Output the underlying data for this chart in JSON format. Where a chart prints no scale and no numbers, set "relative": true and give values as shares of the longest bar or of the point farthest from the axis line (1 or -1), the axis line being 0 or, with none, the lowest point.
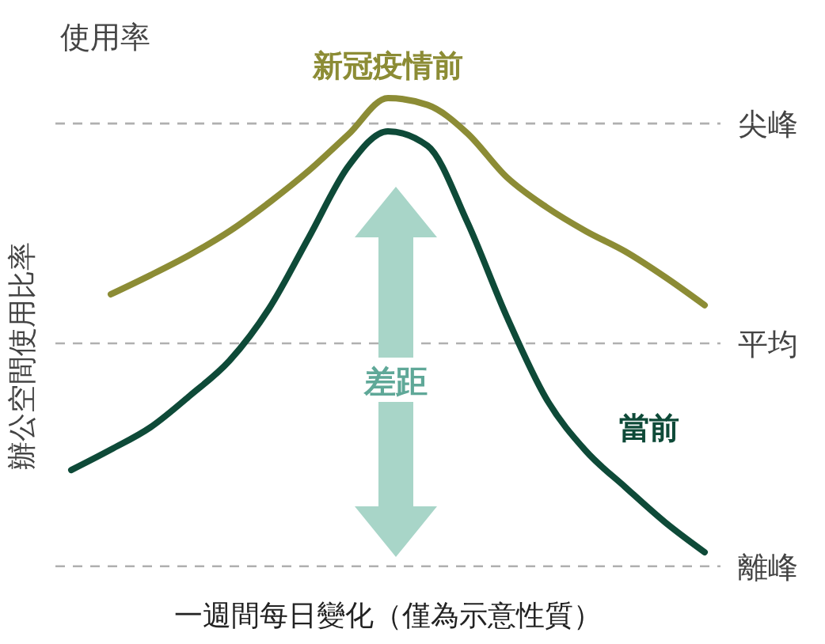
{
  "chart_data": {
    "type": "line",
    "relative": true,
    "xlabel": "一週間每日變化（僅為示意性質）",
    "ylabel": "辦公空間使用比率",
    "annotations": [
      "使用率",
      "差距"
    ],
    "categories": [
      null,
      null,
      null,
      null,
      null,
      null,
      null,
      null,
      null,
      null,
      null,
      null,
      null,
      null,
      null,
      null,
      null
    ],
    "series": [
      {
        "name": "新冠疫情前",
        "color": "#8c8c35",
        "values": [
          null,
          0.568,
          0.61,
          0.655,
          0.707,
          0.77,
          0.84,
          0.92,
          1,
          0.985,
          0.923,
          0.826,
          0.76,
          0.707,
          0.662,
          0.606,
          0.544
        ]
      },
      {
        "name": "當前",
        "color": "#0e4a38",
        "values": [
          0.181,
          0.226,
          0.275,
          0.345,
          0.422,
          0.537,
          0.693,
          0.85,
          0.927,
          0.895,
          0.728,
          0.519,
          0.338,
          0.223,
          0.143,
          0.066,
          0
        ]
      }
    ],
    "ref_lines": [
      {
        "axis": "y",
        "value": 0.944,
        "label": "尖峰",
        "color": "#b0b0b0",
        "line_style": "dashed"
      },
      {
        "axis": "y",
        "value": 0.46,
        "label": "平均",
        "color": "#b0b0b0",
        "line_style": "dashed"
      },
      {
        "axis": "y",
        "value": -0.031,
        "label": "離峰",
        "color": "#b0b0b0",
        "line_style": "dashed"
      }
    ],
    "line_style": "solid"
  }
}
